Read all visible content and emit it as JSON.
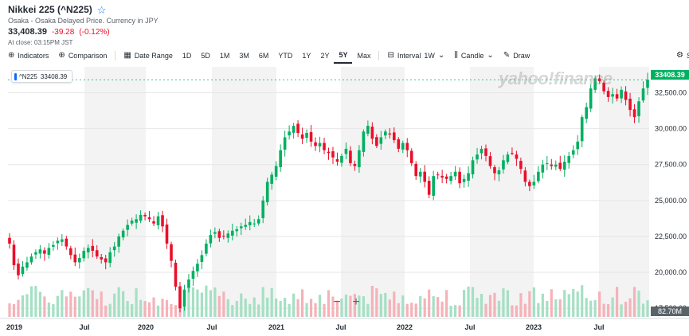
{
  "header": {
    "title": "Nikkei 225 (^N225)",
    "star_icon": "star-icon",
    "subtitle": "Osaka - Osaka Delayed Price. Currency in JPY",
    "price": "33,408.39",
    "change": "-39.28",
    "change_pct": "(-0.12%)",
    "close_note": "At close: 03:15PM JST"
  },
  "toolbar": {
    "indicators": "Indicators",
    "comparison": "Comparison",
    "date_range": "Date Range",
    "ranges": [
      "1D",
      "5D",
      "1M",
      "3M",
      "6M",
      "YTD",
      "1Y",
      "2Y",
      "5Y",
      "Max"
    ],
    "active_range": "5Y",
    "interval_label": "Interval",
    "interval_value": "1W",
    "candle": "Candle",
    "draw": "Draw",
    "settings_partial": "Se"
  },
  "chart": {
    "legend": "^N225",
    "legend_value": "33408.39",
    "last_price_tag": "33408.39",
    "volume_tag": "82.70M",
    "watermark": "yahoo!finance",
    "zoom_out": "−",
    "zoom_in": "+",
    "colors": {
      "up": "#00b061",
      "down": "#eb0f29",
      "vol_up": "#a5e0c4",
      "vol_down": "#f5b2b9",
      "shade": "#f3f3f3"
    }
  },
  "chart_data": {
    "type": "candlestick",
    "y_ticks": [
      "32,500.00",
      "30,000.00",
      "27,500.00",
      "25,000.00",
      "22,500.00",
      "20,000.00",
      "17,500.00"
    ],
    "y_tick_values": [
      32500,
      30000,
      27500,
      25000,
      22500,
      20000,
      17500
    ],
    "x_ticks": [
      "2019",
      "Jul",
      "2020",
      "Jul",
      "2021",
      "Jul",
      "2022",
      "Jul",
      "2023",
      "Jul"
    ],
    "ylim": [
      16900,
      34300
    ],
    "weekly_close_approx": [
      22000,
      20500,
      19800,
      20400,
      20700,
      21100,
      21400,
      21600,
      21300,
      21700,
      21900,
      22200,
      22300,
      21800,
      21200,
      20700,
      21000,
      21500,
      21700,
      21500,
      21100,
      20900,
      20700,
      21400,
      21800,
      22500,
      22900,
      23300,
      23600,
      23700,
      24000,
      23900,
      23700,
      23400,
      23900,
      23200,
      22000,
      20800,
      19000,
      17500,
      18800,
      19500,
      20100,
      20600,
      21200,
      22000,
      22600,
      22800,
      22400,
      22500,
      22700,
      22900,
      23000,
      23200,
      23300,
      23500,
      23400,
      23700,
      25000,
      26300,
      26800,
      27400,
      28500,
      29400,
      29800,
      30200,
      29700,
      29300,
      29700,
      29100,
      28800,
      29000,
      28500,
      28300,
      28000,
      27700,
      28100,
      28600,
      27600,
      27400,
      28500,
      29800,
      30200,
      29300,
      28800,
      29400,
      29800,
      29600,
      29200,
      28600,
      29000,
      28500,
      27600,
      26700,
      27000,
      26300,
      25400,
      26700,
      26800,
      26600,
      26500,
      26700,
      27000,
      26200,
      26500,
      26900,
      27800,
      28200,
      28600,
      28100,
      27400,
      26900,
      27100,
      27800,
      28200,
      28300,
      27900,
      27200,
      26300,
      26000,
      26300,
      27000,
      27500,
      27600,
      27400,
      27500,
      27200,
      27700,
      28100,
      28500,
      29100,
      30800,
      31500,
      32800,
      33500,
      33300,
      32600,
      32200,
      32400,
      32100,
      32700,
      32000,
      31300,
      30800,
      31900,
      32800,
      33408
    ]
  }
}
